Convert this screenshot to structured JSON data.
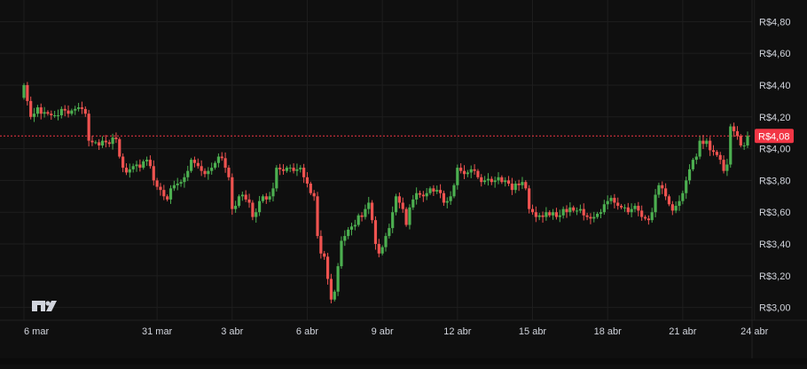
{
  "colors": {
    "background": "#0f0f0f",
    "grid": "#1e1e1e",
    "up": "#26a69a",
    "up_candle": "#4caf50",
    "down": "#ef5350",
    "axis_text": "#d1d4dc",
    "price_line": "#f23645",
    "price_badge": "#f23645"
  },
  "logo": {
    "text": "TV",
    "icon": "tradingview-logo-icon"
  },
  "chart_data": {
    "type": "candlestick",
    "title": "",
    "xlabel": "",
    "ylabel": "",
    "ylim": [
      2.92,
      4.88
    ],
    "grid": true,
    "y_ticks": [
      {
        "value": 4.8,
        "label": "R$4,80"
      },
      {
        "value": 4.6,
        "label": "R$4,60"
      },
      {
        "value": 4.4,
        "label": "R$4,40"
      },
      {
        "value": 4.2,
        "label": "R$4,20"
      },
      {
        "value": 4.0,
        "label": "R$4,00"
      },
      {
        "value": 3.8,
        "label": "R$3,80"
      },
      {
        "value": 3.6,
        "label": "R$3,60"
      },
      {
        "value": 3.4,
        "label": "R$3,40"
      },
      {
        "value": 3.2,
        "label": "R$3,20"
      },
      {
        "value": 3.0,
        "label": "R$3,00"
      }
    ],
    "x_ticks": [
      {
        "index": 0,
        "label": "6 mar"
      },
      {
        "index": 39,
        "label": "31 mar"
      },
      {
        "index": 61,
        "label": "3 abr"
      },
      {
        "index": 83,
        "label": "6 abr"
      },
      {
        "index": 105,
        "label": "9 abr"
      },
      {
        "index": 127,
        "label": "12 abr"
      },
      {
        "index": 149,
        "label": "15 abr"
      },
      {
        "index": 171,
        "label": "18 abr"
      },
      {
        "index": 193,
        "label": "21 abr"
      },
      {
        "index": 214,
        "label": "24 abr"
      }
    ],
    "last_price": {
      "value": 4.08,
      "label": "R$4,08"
    },
    "series": [
      {
        "name": "",
        "closes": [
          4.4,
          4.3,
          4.2,
          4.22,
          4.26,
          4.22,
          4.23,
          4.22,
          4.21,
          4.21,
          4.21,
          4.25,
          4.24,
          4.22,
          4.24,
          4.25,
          4.26,
          4.25,
          4.22,
          4.05,
          4.04,
          4.04,
          4.02,
          4.05,
          4.04,
          4.03,
          4.07,
          4.06,
          3.95,
          3.88,
          3.85,
          3.87,
          3.89,
          3.9,
          3.88,
          3.92,
          3.93,
          3.89,
          3.8,
          3.76,
          3.74,
          3.7,
          3.68,
          3.75,
          3.77,
          3.78,
          3.79,
          3.82,
          3.86,
          3.93,
          3.91,
          3.89,
          3.86,
          3.84,
          3.86,
          3.88,
          3.91,
          3.95,
          3.94,
          3.88,
          3.82,
          3.62,
          3.64,
          3.7,
          3.71,
          3.68,
          3.66,
          3.57,
          3.6,
          3.67,
          3.7,
          3.68,
          3.7,
          3.75,
          3.88,
          3.87,
          3.86,
          3.88,
          3.88,
          3.86,
          3.87,
          3.88,
          3.82,
          3.78,
          3.72,
          3.7,
          3.45,
          3.34,
          3.32,
          3.18,
          3.05,
          3.1,
          3.26,
          3.42,
          3.45,
          3.49,
          3.51,
          3.52,
          3.58,
          3.57,
          3.62,
          3.66,
          3.55,
          3.4,
          3.34,
          3.38,
          3.45,
          3.5,
          3.6,
          3.7,
          3.66,
          3.62,
          3.52,
          3.63,
          3.68,
          3.72,
          3.71,
          3.7,
          3.72,
          3.75,
          3.73,
          3.74,
          3.72,
          3.66,
          3.67,
          3.7,
          3.77,
          3.88,
          3.86,
          3.84,
          3.85,
          3.87,
          3.86,
          3.82,
          3.79,
          3.8,
          3.81,
          3.79,
          3.8,
          3.82,
          3.79,
          3.8,
          3.78,
          3.74,
          3.78,
          3.77,
          3.79,
          3.75,
          3.62,
          3.6,
          3.57,
          3.58,
          3.57,
          3.6,
          3.58,
          3.6,
          3.57,
          3.58,
          3.62,
          3.6,
          3.63,
          3.61,
          3.61,
          3.62,
          3.58,
          3.57,
          3.56,
          3.57,
          3.59,
          3.6,
          3.65,
          3.67,
          3.69,
          3.66,
          3.64,
          3.63,
          3.63,
          3.6,
          3.62,
          3.64,
          3.61,
          3.57,
          3.56,
          3.55,
          3.6,
          3.71,
          3.77,
          3.75,
          3.7,
          3.65,
          3.61,
          3.64,
          3.67,
          3.72,
          3.8,
          3.87,
          3.93,
          3.95,
          4.05,
          4.03,
          4.05,
          3.99,
          3.98,
          3.96,
          3.93,
          3.86,
          3.9,
          4.14,
          4.11,
          4.08,
          4.02,
          4.02,
          4.08
        ]
      }
    ]
  }
}
